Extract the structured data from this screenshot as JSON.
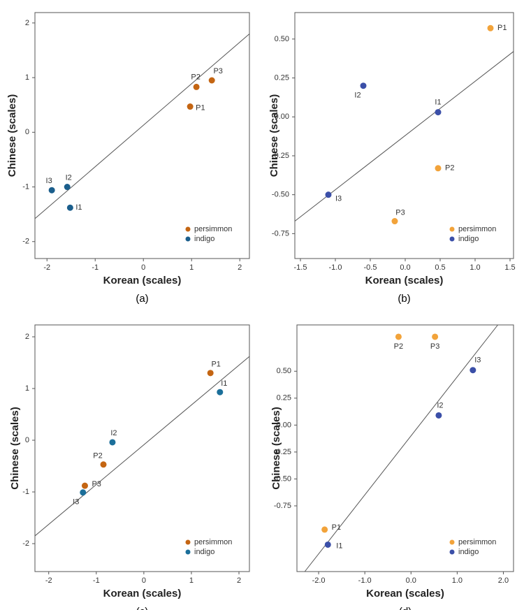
{
  "chart_data": [
    {
      "type": "scatter",
      "caption": "(a)",
      "xlabel": "Korean (scales)",
      "ylabel": "Chinese (scales)",
      "xlim": [
        -2.25,
        2.2
      ],
      "ylim": [
        -2.31,
        2.19
      ],
      "xticks": [
        -2,
        -1,
        0,
        1,
        2
      ],
      "yticks": [
        -2,
        -1,
        0,
        1,
        2
      ],
      "legend": "lower right",
      "fit_line": {
        "x": [
          -2.25,
          2.2
        ],
        "y": [
          -1.58,
          1.8
        ]
      },
      "series": [
        {
          "name": "persimmon",
          "color": "#c46512",
          "point_labels": [
            "P1",
            "P2",
            "P3"
          ],
          "x": [
            0.97,
            1.1,
            1.42
          ],
          "values": [
            0.47,
            0.83,
            0.95
          ]
        },
        {
          "name": "indigo",
          "color": "#1b5e8c",
          "point_labels": [
            "I1",
            "I2",
            "I3"
          ],
          "x": [
            -1.52,
            -1.58,
            -1.9
          ],
          "values": [
            -1.38,
            -1.0,
            -1.06
          ]
        }
      ]
    },
    {
      "type": "scatter",
      "caption": "(b)",
      "xlabel": "Korean (scales)",
      "ylabel": "Chinese (scales)",
      "xlim": [
        -1.58,
        1.55
      ],
      "ylim": [
        -0.91,
        0.67
      ],
      "xticks": [
        -1.5,
        {
          "value": -1,
          "label": "-1.0"
        },
        -0.5,
        {
          "value": 0,
          "label": "0.0"
        },
        0.5,
        {
          "value": 1,
          "label": "1.0"
        },
        1.5
      ],
      "yticks": [
        -0.75,
        {
          "value": -0.5,
          "label": "-0.50"
        },
        -0.25,
        {
          "value": 0,
          "label": "0.00"
        },
        0.25,
        {
          "value": 0.5,
          "label": "0.50"
        }
      ],
      "legend": "lower right",
      "fit_line": {
        "x": [
          -1.58,
          1.55
        ],
        "y": [
          -0.67,
          0.42
        ]
      },
      "series": [
        {
          "name": "persimmon",
          "color": "#f2a33a",
          "point_labels": [
            "P1",
            "P2",
            "P3"
          ],
          "x": [
            1.22,
            0.47,
            -0.15
          ],
          "values": [
            0.57,
            -0.33,
            -0.67
          ]
        },
        {
          "name": "indigo",
          "color": "#3b4fa8",
          "point_labels": [
            "I1",
            "I2",
            "I3"
          ],
          "x": [
            0.47,
            -0.6,
            -1.1
          ],
          "values": [
            0.03,
            0.2,
            -0.5
          ]
        }
      ]
    },
    {
      "type": "scatter",
      "caption": "(c)",
      "xlabel": "Korean (scales)",
      "ylabel": "Chinese (scales)",
      "xlim": [
        -2.29,
        2.22
      ],
      "ylim": [
        -2.54,
        2.23
      ],
      "xticks": [
        -2,
        -1,
        0,
        1,
        2
      ],
      "yticks": [
        -2,
        -1,
        0,
        1,
        2
      ],
      "legend": "lower right",
      "fit_line": {
        "x": [
          -2.29,
          2.22
        ],
        "y": [
          -1.85,
          1.62
        ]
      },
      "series": [
        {
          "name": "persimmon",
          "color": "#c46512",
          "point_labels": [
            "P1",
            "P2",
            "P3"
          ],
          "x": [
            1.4,
            -0.85,
            -1.24
          ],
          "values": [
            1.3,
            -0.47,
            -0.88
          ]
        },
        {
          "name": "indigo",
          "color": "#1b6f9a",
          "point_labels": [
            "I1",
            "I2",
            "I3"
          ],
          "x": [
            1.6,
            -0.66,
            -1.28
          ],
          "values": [
            0.93,
            -0.04,
            -1.01
          ]
        }
      ]
    },
    {
      "type": "scatter",
      "caption": "(d)",
      "xlabel": "Korean (scales)",
      "ylabel": "Chinese (scales)",
      "xlim": [
        -2.47,
        2.22
      ],
      "ylim": [
        -1.36,
        0.93
      ],
      "xticks": [
        {
          "value": -2,
          "label": "-2.0"
        },
        {
          "value": -1,
          "label": "-1.0"
        },
        {
          "value": 0,
          "label": "0.0"
        },
        {
          "value": 1,
          "label": "1.0"
        },
        {
          "value": 2,
          "label": "2.0"
        }
      ],
      "yticks": [
        -0.75,
        {
          "value": -0.5,
          "label": "-0.50"
        },
        -0.25,
        {
          "value": 0,
          "label": "0.00"
        },
        0.25,
        {
          "value": 0.5,
          "label": "0.50"
        }
      ],
      "legend": "lower right",
      "fit_line": {
        "x": [
          -2.3,
          1.88
        ],
        "y": [
          -1.36,
          0.93
        ]
      },
      "series": [
        {
          "name": "persimmon",
          "color": "#f2a33a",
          "point_labels": [
            "P1",
            "P2",
            "P3"
          ],
          "x": [
            -1.87,
            -0.27,
            0.52
          ],
          "values": [
            -0.97,
            0.82,
            0.82
          ]
        },
        {
          "name": "indigo",
          "color": "#3b4fa8",
          "point_labels": [
            "I1",
            "I2",
            "I3"
          ],
          "x": [
            -1.8,
            0.6,
            1.34
          ],
          "values": [
            -1.11,
            0.09,
            0.51
          ]
        }
      ]
    }
  ]
}
